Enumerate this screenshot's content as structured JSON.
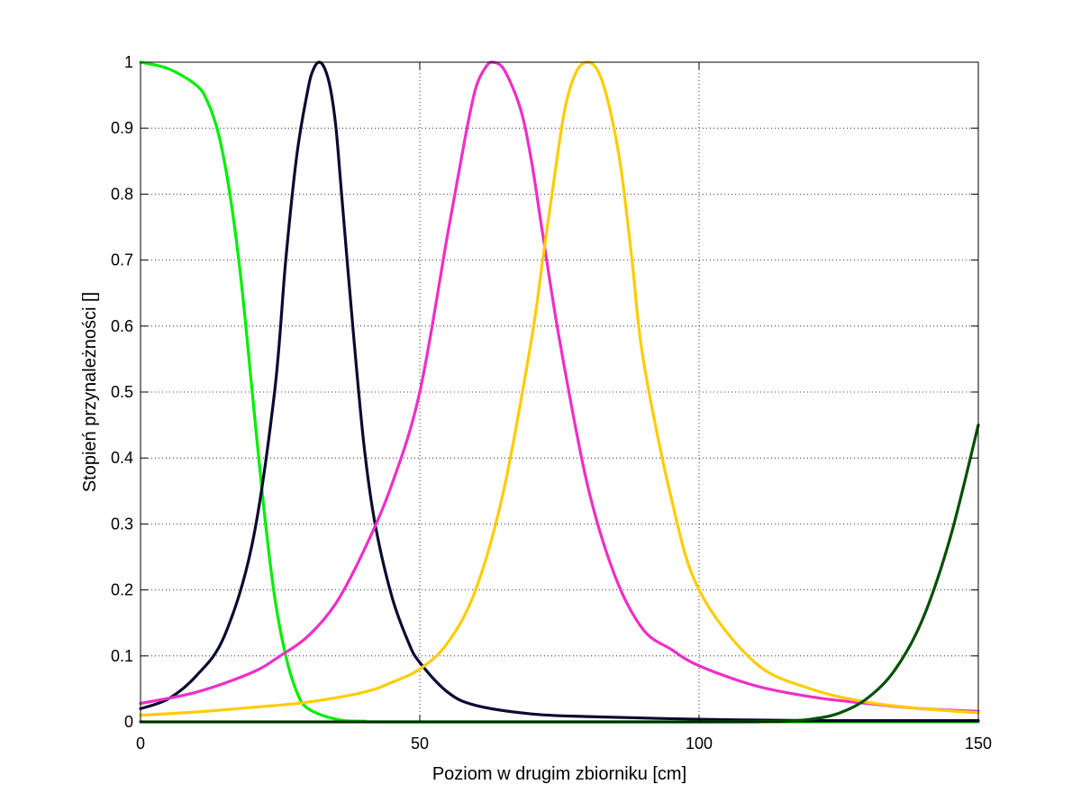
{
  "chart_data": {
    "type": "line",
    "xlabel": "Poziom w drugim zbiorniku [cm]",
    "ylabel": "Stopień przynależności []",
    "xlim": [
      0,
      150
    ],
    "ylim": [
      0,
      1
    ],
    "xticks": [
      0,
      50,
      100,
      150
    ],
    "xtick_labels": [
      "0",
      "50",
      "100",
      "150"
    ],
    "yticks": [
      0,
      0.1,
      0.2,
      0.3,
      0.4,
      0.5,
      0.6,
      0.7,
      0.8,
      0.9,
      1
    ],
    "ytick_labels": [
      "0",
      "0.1",
      "0.2",
      "0.3",
      "0.4",
      "0.5",
      "0.6",
      "0.7",
      "0.8",
      "0.9",
      "1"
    ],
    "grid": true,
    "legend": "none",
    "series": [
      {
        "color": "#00ee00",
        "x": [
          0,
          5,
          10,
          12,
          14,
          16,
          18,
          20,
          22,
          24,
          26,
          28,
          30,
          35,
          40,
          50,
          150
        ],
        "y": [
          1.0,
          0.99,
          0.965,
          0.94,
          0.89,
          0.8,
          0.67,
          0.5,
          0.33,
          0.19,
          0.1,
          0.045,
          0.02,
          0.004,
          0.001,
          0.0,
          0.0
        ]
      },
      {
        "color": "#0a0a32",
        "x": [
          0,
          5,
          10,
          15,
          20,
          24,
          26,
          28,
          30,
          31,
          32,
          33,
          34,
          35,
          36,
          38,
          40,
          42,
          45,
          48,
          50,
          55,
          60,
          70,
          80,
          100,
          120,
          150
        ],
        "y": [
          0.02,
          0.035,
          0.07,
          0.13,
          0.27,
          0.5,
          0.7,
          0.86,
          0.96,
          0.99,
          1.0,
          0.99,
          0.96,
          0.9,
          0.8,
          0.6,
          0.42,
          0.3,
          0.19,
          0.12,
          0.09,
          0.045,
          0.025,
          0.012,
          0.008,
          0.004,
          0.002,
          0.002
        ]
      },
      {
        "color": "#ee2ec8",
        "x": [
          0,
          10,
          20,
          25,
          30,
          35,
          40,
          45,
          50,
          55,
          58,
          60,
          62,
          63,
          65,
          68,
          70,
          72,
          75,
          80,
          85,
          90,
          95,
          100,
          110,
          120,
          130,
          140,
          150
        ],
        "y": [
          0.028,
          0.045,
          0.075,
          0.1,
          0.13,
          0.18,
          0.26,
          0.36,
          0.5,
          0.74,
          0.88,
          0.96,
          0.995,
          1.0,
          0.99,
          0.93,
          0.85,
          0.74,
          0.58,
          0.36,
          0.22,
          0.14,
          0.11,
          0.085,
          0.055,
          0.038,
          0.028,
          0.02,
          0.016
        ]
      },
      {
        "color": "#ffcc00",
        "x": [
          0,
          10,
          20,
          30,
          40,
          45,
          50,
          55,
          60,
          65,
          70,
          72,
          74,
          76,
          78,
          80,
          82,
          84,
          86,
          88,
          90,
          95,
          100,
          110,
          120,
          130,
          140,
          150
        ],
        "y": [
          0.01,
          0.015,
          0.022,
          0.03,
          0.045,
          0.06,
          0.08,
          0.12,
          0.2,
          0.35,
          0.58,
          0.7,
          0.82,
          0.93,
          0.985,
          1.0,
          0.985,
          0.93,
          0.84,
          0.7,
          0.55,
          0.34,
          0.2,
          0.09,
          0.05,
          0.03,
          0.02,
          0.014
        ]
      },
      {
        "color": "#005000",
        "x": [
          0,
          100,
          110,
          115,
          120,
          125,
          130,
          135,
          140,
          145,
          150
        ],
        "y": [
          0.0,
          0.0,
          0.0005,
          0.001,
          0.004,
          0.013,
          0.035,
          0.078,
          0.155,
          0.28,
          0.45
        ]
      }
    ]
  }
}
